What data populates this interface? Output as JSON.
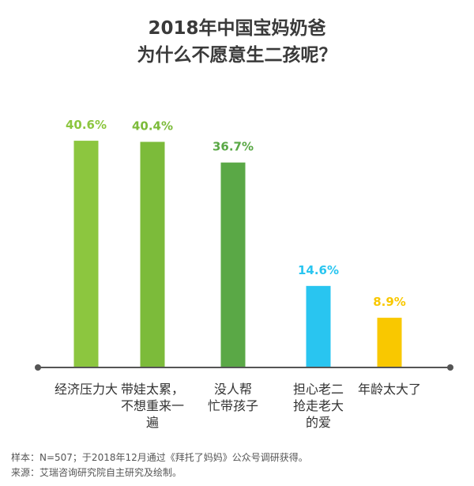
{
  "title_line1": "2018年中国宝妈奶爸",
  "title_line2": "为什么不愿意生二孩呢？",
  "chart_data": {
    "type": "bar",
    "title": "2018年中国宝妈奶爸 为什么不愿意生二孩呢？",
    "categories": [
      [
        "经济压力大"
      ],
      [
        "带娃太累，",
        "不想重来一",
        "遍"
      ],
      [
        "没人帮",
        "忙带孩子"
      ],
      [
        "担心老二",
        "抢走老大",
        "的爱"
      ],
      [
        "年龄太大了"
      ]
    ],
    "values": [
      40.6,
      40.4,
      36.7,
      14.6,
      8.9
    ],
    "value_labels": [
      "40.6%",
      "40.4%",
      "36.7%",
      "14.6%",
      "8.9%"
    ],
    "unit": "%",
    "ylim": [
      0,
      45
    ],
    "grid": false,
    "colors": [
      "#8cc63f",
      "#7cbb3a",
      "#5aa846",
      "#29c5f0",
      "#f9c800"
    ],
    "axis_color": "#555555"
  },
  "footnote": {
    "sample": "样本：N=507；于2018年12月通过《拜托了妈妈》公众号调研获得。",
    "source": "来源：艾瑞咨询研究院自主研究及绘制。"
  }
}
